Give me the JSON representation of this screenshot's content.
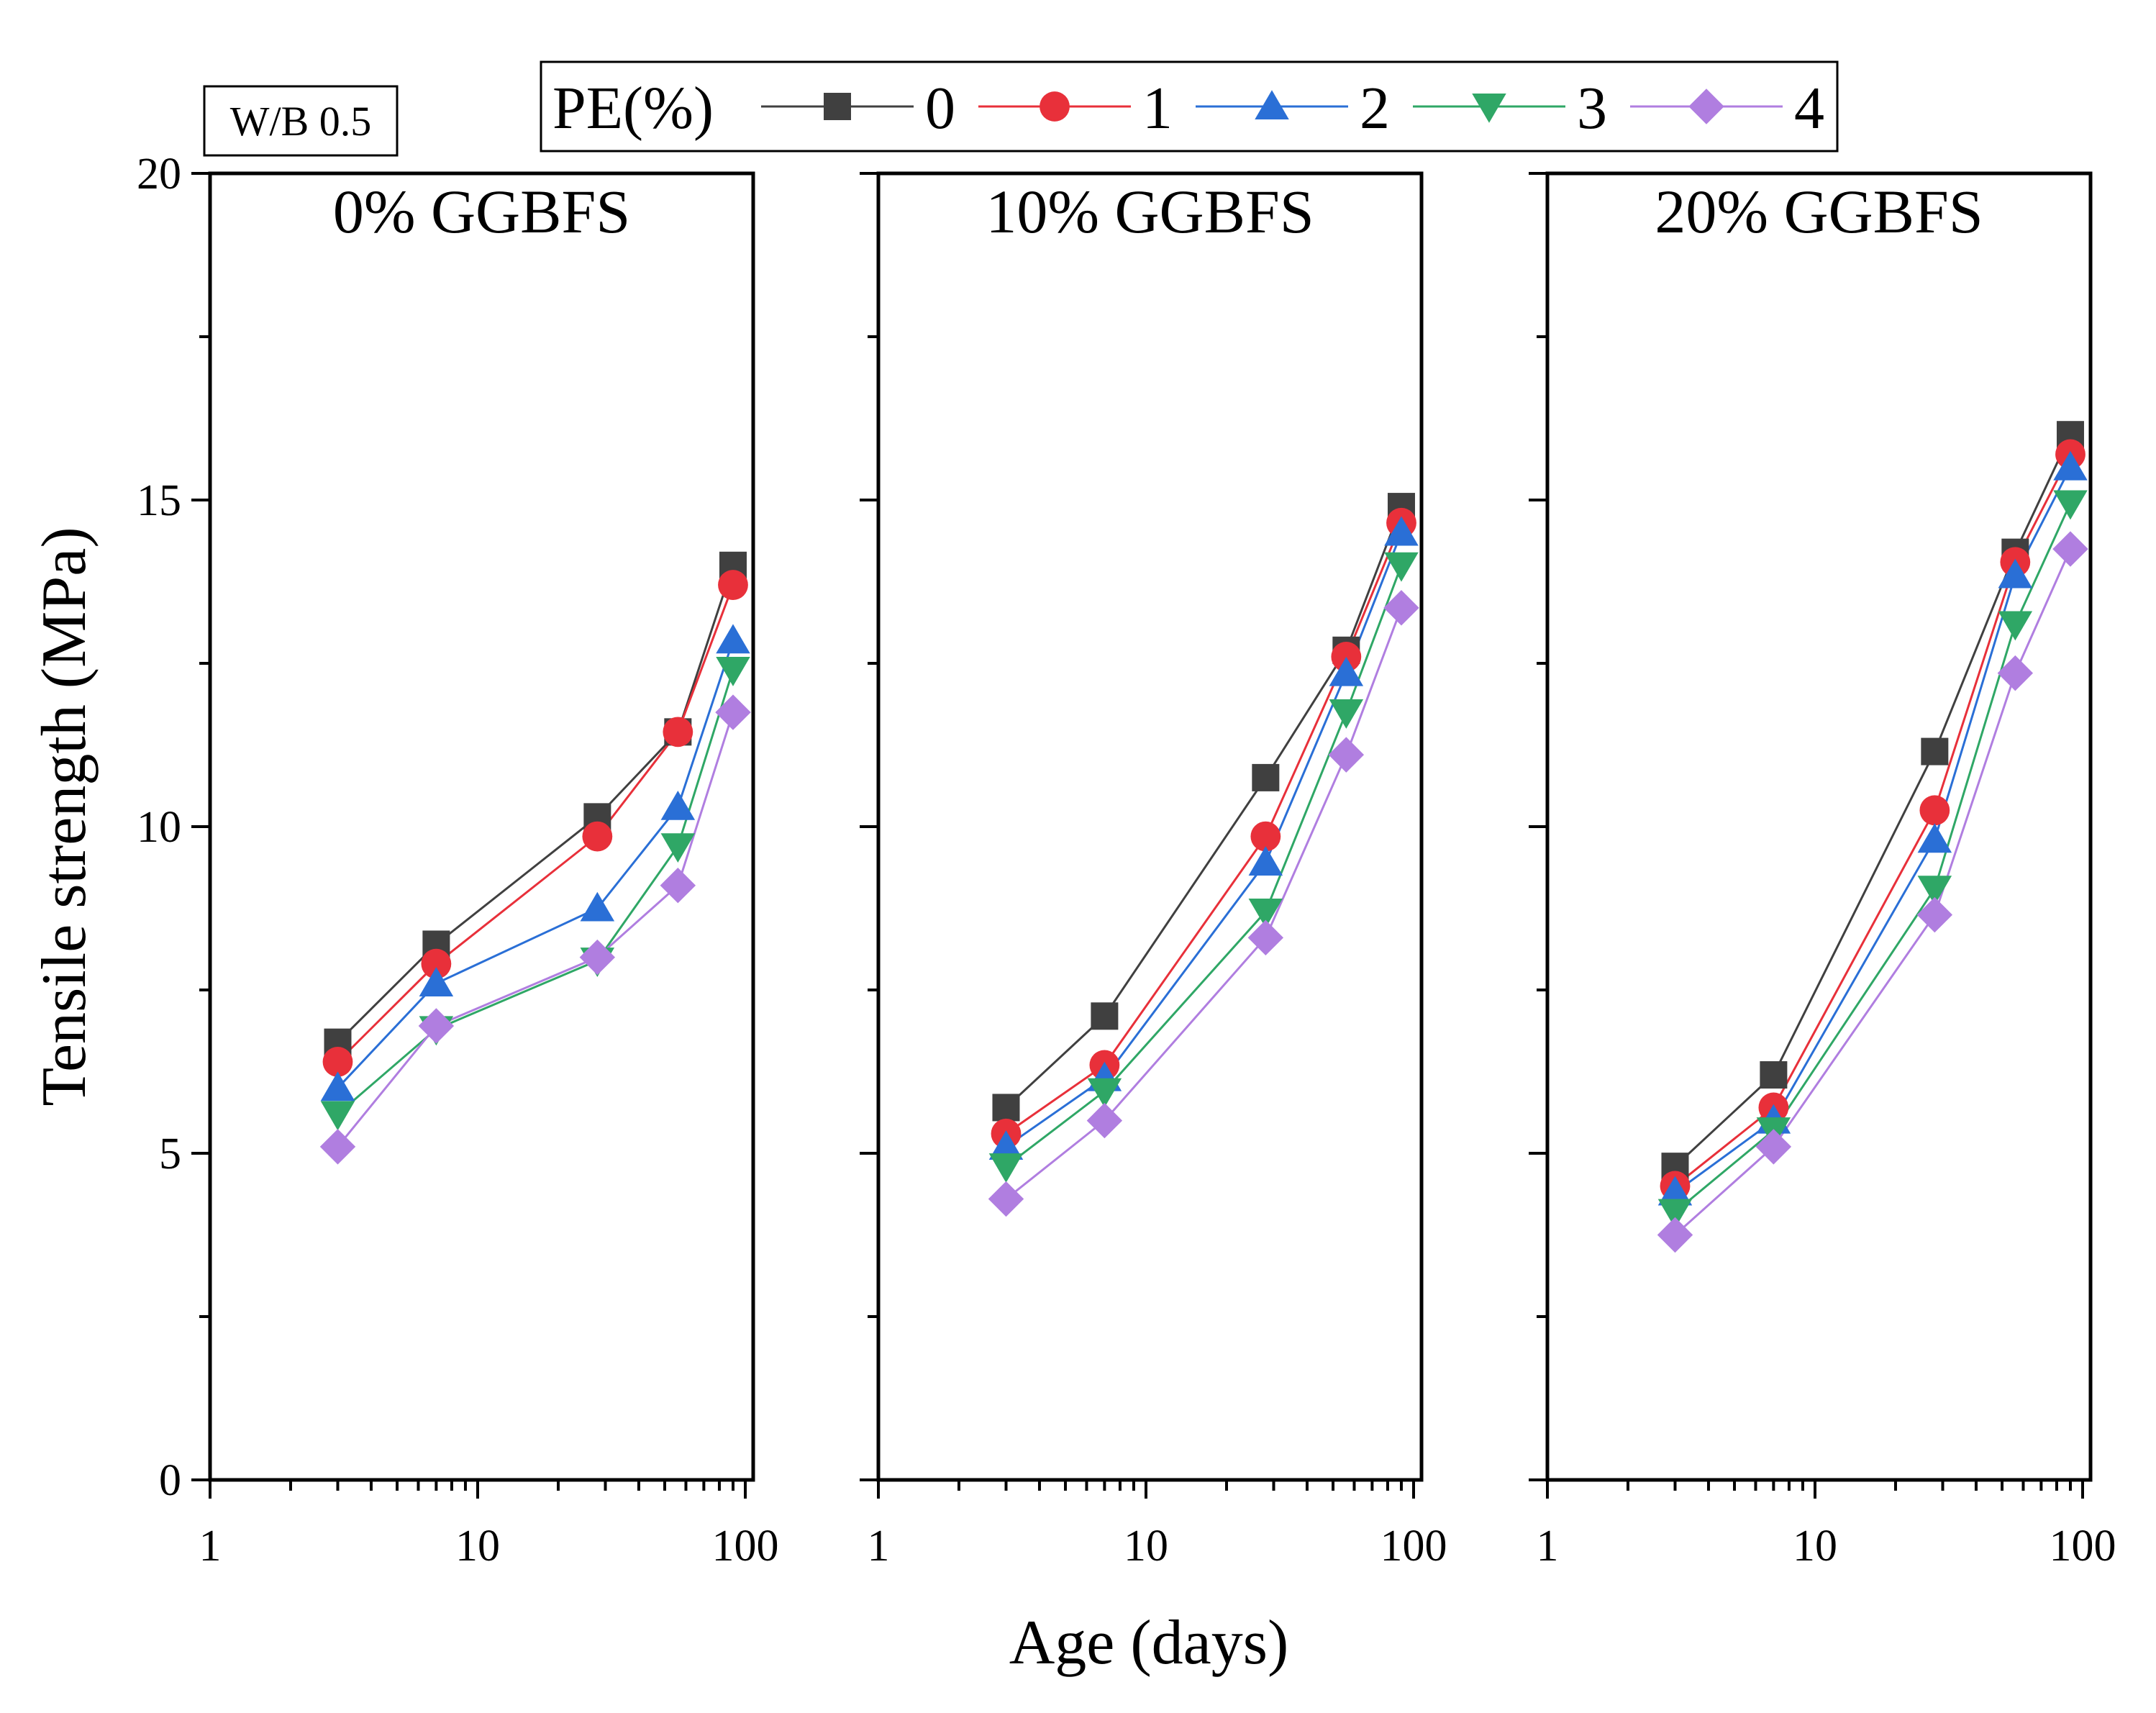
{
  "figure": {
    "wb_label": "W/B 0.5",
    "x_axis_title": "Age (days)",
    "y_axis_title": "Tensile strength (MPa)"
  },
  "legend": {
    "title": "PE(%)",
    "entries": [
      {
        "label": "0",
        "color": "#404040",
        "marker": "square"
      },
      {
        "label": "1",
        "color": "#e8303a",
        "marker": "circle"
      },
      {
        "label": "2",
        "color": "#2a6fd6",
        "marker": "triangle-up"
      },
      {
        "label": "3",
        "color": "#2fa766",
        "marker": "triangle-down"
      },
      {
        "label": "4",
        "color": "#b07ee0",
        "marker": "diamond"
      }
    ]
  },
  "chart_data": [
    {
      "type": "line",
      "title": "0% GGBFS",
      "xlabel": "Age (days)",
      "ylabel": "Tensile strength (MPa)",
      "xscale": "log",
      "xlim": [
        1,
        100
      ],
      "ylim": [
        0,
        20
      ],
      "x_ticks": [
        "1",
        "10",
        "100"
      ],
      "y_ticks": [
        "0",
        "5",
        "10",
        "15",
        "20"
      ],
      "x": [
        3,
        7,
        28,
        56,
        90
      ],
      "series": [
        {
          "name": "0",
          "values": [
            6.7,
            8.2,
            10.15,
            11.45,
            14.0
          ]
        },
        {
          "name": "1",
          "values": [
            6.4,
            7.9,
            9.85,
            11.45,
            13.7
          ]
        },
        {
          "name": "2",
          "values": [
            6.0,
            7.6,
            8.75,
            10.3,
            12.85
          ]
        },
        {
          "name": "3",
          "values": [
            5.6,
            6.9,
            7.95,
            9.7,
            12.4
          ]
        },
        {
          "name": "4",
          "values": [
            5.1,
            6.95,
            8.0,
            9.1,
            11.75
          ]
        }
      ]
    },
    {
      "type": "line",
      "title": "10% GGBFS",
      "xlabel": "Age (days)",
      "ylabel": "Tensile strength (MPa)",
      "xscale": "log",
      "xlim": [
        1,
        100
      ],
      "ylim": [
        0,
        20
      ],
      "x_ticks": [
        "1",
        "10",
        "100"
      ],
      "y_ticks": [
        "0",
        "5",
        "10",
        "15",
        "20"
      ],
      "x": [
        3,
        7,
        28,
        56,
        90
      ],
      "series": [
        {
          "name": "0",
          "values": [
            5.7,
            7.1,
            10.75,
            12.7,
            14.9
          ]
        },
        {
          "name": "1",
          "values": [
            5.3,
            6.35,
            9.85,
            12.6,
            14.65
          ]
        },
        {
          "name": "2",
          "values": [
            5.1,
            6.15,
            9.45,
            12.35,
            14.5
          ]
        },
        {
          "name": "3",
          "values": [
            4.8,
            5.95,
            8.7,
            11.75,
            14.0
          ]
        },
        {
          "name": "4",
          "values": [
            4.3,
            5.5,
            8.3,
            11.1,
            13.35
          ]
        }
      ]
    },
    {
      "type": "line",
      "title": "20% GGBFS",
      "xlabel": "Age (days)",
      "ylabel": "Tensile strength (MPa)",
      "xscale": "log",
      "xlim": [
        1,
        100
      ],
      "ylim": [
        0,
        20
      ],
      "x_ticks": [
        "1",
        "10",
        "100"
      ],
      "y_ticks": [
        "0",
        "5",
        "10",
        "15",
        "20"
      ],
      "x": [
        3,
        7,
        28,
        56,
        90
      ],
      "series": [
        {
          "name": "0",
          "values": [
            4.8,
            6.2,
            11.15,
            14.2,
            16.0
          ]
        },
        {
          "name": "1",
          "values": [
            4.5,
            5.7,
            10.25,
            14.05,
            15.7
          ]
        },
        {
          "name": "2",
          "values": [
            4.4,
            5.5,
            9.8,
            13.85,
            15.5
          ]
        },
        {
          "name": "3",
          "values": [
            4.1,
            5.35,
            9.05,
            13.1,
            14.95
          ]
        },
        {
          "name": "4",
          "values": [
            3.75,
            5.1,
            8.65,
            12.35,
            14.25
          ]
        }
      ]
    }
  ]
}
